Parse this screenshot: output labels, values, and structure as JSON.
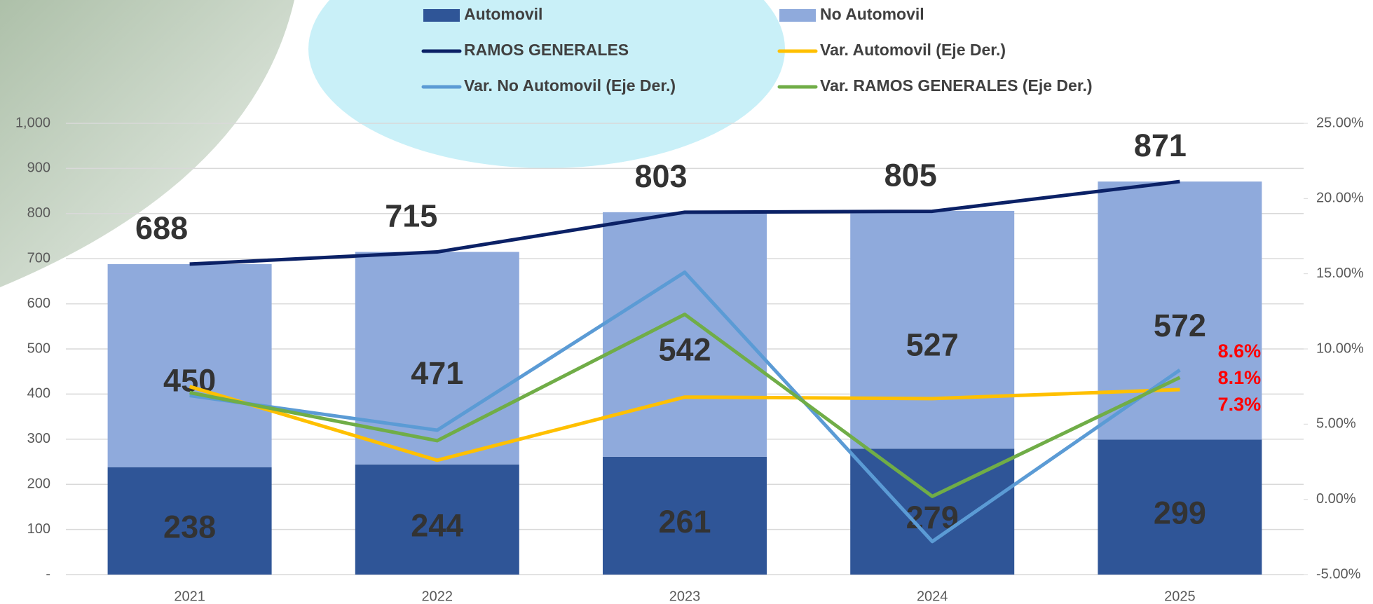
{
  "chart_data": {
    "type": "bar",
    "categories": [
      "2021",
      "2022",
      "2023",
      "2024",
      "2025"
    ],
    "series": [
      {
        "name": "Automovil",
        "type": "bar",
        "color": "#2f5597",
        "values": [
          238,
          244,
          261,
          279,
          299
        ]
      },
      {
        "name": "No Automovil",
        "type": "bar",
        "color": "#8faadc",
        "values": [
          450,
          471,
          542,
          527,
          572
        ]
      },
      {
        "name": "RAMOS GENERALES",
        "type": "line",
        "color": "#0b2166",
        "values": [
          688,
          715,
          803,
          805,
          871
        ]
      },
      {
        "name": "Var. Automovil (Eje Der.)",
        "type": "line",
        "axis": "y2",
        "color": "#ffc000",
        "values": [
          7.5,
          2.6,
          6.8,
          6.7,
          7.3
        ],
        "value_labels": [
          null,
          null,
          null,
          null,
          "7.3%"
        ],
        "label_color": "#ff0000"
      },
      {
        "name": "Var. No Automovil (Eje Der.)",
        "type": "line",
        "axis": "y2",
        "color": "#5b9bd5",
        "values": [
          6.9,
          4.6,
          15.1,
          -2.8,
          8.6
        ],
        "value_labels": [
          null,
          null,
          null,
          null,
          "8.6%"
        ],
        "label_color": "#ff0000"
      },
      {
        "name": "Var. RAMOS GENERALES (Eje Der.)",
        "type": "line",
        "axis": "y2",
        "color": "#70ad47",
        "values": [
          7.1,
          3.9,
          12.3,
          0.2,
          8.1
        ],
        "value_labels": [
          null,
          null,
          null,
          null,
          "8.1%"
        ],
        "label_color": "#ff0000"
      }
    ],
    "ylim": [
      0,
      1000
    ],
    "yticks": [
      {
        "value": 0,
        "label": "-"
      },
      100,
      200,
      300,
      400,
      500,
      600,
      700,
      800,
      900,
      {
        "value": 1000,
        "label": "1,000"
      }
    ],
    "y2lim": [
      -5,
      25
    ],
    "y2ticks": [
      {
        "value": -5,
        "label": "-5.00%"
      },
      {
        "value": 0,
        "label": "0.00%"
      },
      {
        "value": 5,
        "label": "5.00%"
      },
      {
        "value": 10,
        "label": "10.00%"
      },
      {
        "value": 15,
        "label": "15.00%"
      },
      {
        "value": 20,
        "label": "20.00%"
      },
      {
        "value": 25,
        "label": "25.00%"
      }
    ],
    "grid": true,
    "data_labels": true,
    "legend": "top"
  }
}
